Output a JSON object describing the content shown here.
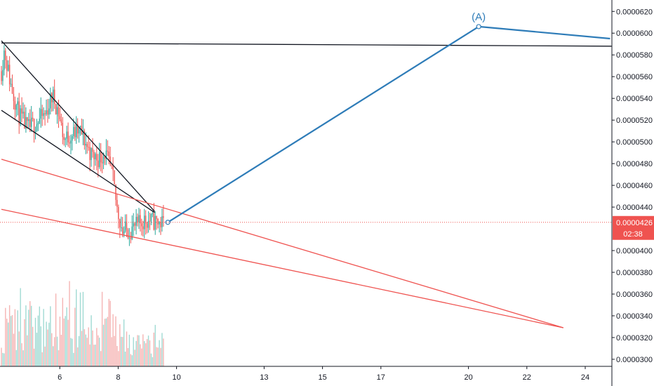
{
  "chart_data": {
    "type": "candlestick",
    "title": "",
    "xlabel": "",
    "ylabel": "",
    "ylim": [
      2.935e-05,
      6.305e-05
    ],
    "xlim": [
      4.0,
      25.0
    ],
    "y_ticks": [
      {
        "value": 3e-05,
        "label": "0.0000300"
      },
      {
        "value": 3.2e-05,
        "label": "0.0000320"
      },
      {
        "value": 3.4e-05,
        "label": "0.0000340"
      },
      {
        "value": 3.6e-05,
        "label": "0.0000360"
      },
      {
        "value": 3.8e-05,
        "label": "0.0000380"
      },
      {
        "value": 4e-05,
        "label": "0.0000400"
      },
      {
        "value": 4.4e-05,
        "label": "0.0000440"
      },
      {
        "value": 4.6e-05,
        "label": "0.0000460"
      },
      {
        "value": 4.8e-05,
        "label": "0.0000480"
      },
      {
        "value": 5e-05,
        "label": "0.0000500"
      },
      {
        "value": 5.2e-05,
        "label": "0.0000520"
      },
      {
        "value": 5.4e-05,
        "label": "0.0000540"
      },
      {
        "value": 5.6e-05,
        "label": "0.0000560"
      },
      {
        "value": 5.8e-05,
        "label": "0.0000580"
      },
      {
        "value": 6e-05,
        "label": "0.0000600"
      },
      {
        "value": 6.2e-05,
        "label": "0.0000620"
      }
    ],
    "x_ticks": [
      {
        "value": 6,
        "label": "6"
      },
      {
        "value": 8,
        "label": "8"
      },
      {
        "value": 10,
        "label": "10"
      },
      {
        "value": 13,
        "label": "13"
      },
      {
        "value": 15,
        "label": "15"
      },
      {
        "value": 17,
        "label": "17"
      },
      {
        "value": 20,
        "label": "20"
      },
      {
        "value": 22,
        "label": "22"
      },
      {
        "value": 24,
        "label": "24"
      }
    ],
    "price_anchors": [
      {
        "x": 4.0,
        "y": 5.65e-05
      },
      {
        "x": 4.1,
        "y": 5.85e-05
      },
      {
        "x": 4.3,
        "y": 5.55e-05
      },
      {
        "x": 4.6,
        "y": 5.25e-05
      },
      {
        "x": 4.9,
        "y": 5.12e-05
      },
      {
        "x": 5.2,
        "y": 5.18e-05
      },
      {
        "x": 5.5,
        "y": 5.25e-05
      },
      {
        "x": 5.75,
        "y": 5.43e-05
      },
      {
        "x": 5.95,
        "y": 5.28e-05
      },
      {
        "x": 6.15,
        "y": 5.02e-05
      },
      {
        "x": 6.4,
        "y": 5.07e-05
      },
      {
        "x": 6.7,
        "y": 5.1e-05
      },
      {
        "x": 6.9,
        "y": 4.98e-05
      },
      {
        "x": 7.1,
        "y": 4.87e-05
      },
      {
        "x": 7.35,
        "y": 4.85e-05
      },
      {
        "x": 7.55,
        "y": 4.9e-05
      },
      {
        "x": 7.8,
        "y": 4.7e-05
      },
      {
        "x": 7.95,
        "y": 4.4e-05
      },
      {
        "x": 8.15,
        "y": 4.18e-05
      },
      {
        "x": 8.4,
        "y": 4.19e-05
      },
      {
        "x": 8.6,
        "y": 4.22e-05
      },
      {
        "x": 8.9,
        "y": 4.28e-05
      },
      {
        "x": 9.2,
        "y": 4.27e-05
      },
      {
        "x": 9.55,
        "y": 4.25e-05
      }
    ],
    "volume_bars_count": 120,
    "current_price": {
      "value": 4.26e-05,
      "label": "0.0000426",
      "countdown": "02:38",
      "color": "#ef5350"
    },
    "drawings": [
      {
        "name": "horizontal-resistance",
        "color": "#131722",
        "points": [
          [
            4.0,
            5.91e-05
          ],
          [
            24.9,
            5.88e-05
          ]
        ]
      },
      {
        "name": "wedge-upper",
        "color": "#131722",
        "points": [
          [
            4.0,
            5.93e-05
          ],
          [
            9.25,
            4.36e-05
          ]
        ]
      },
      {
        "name": "wedge-lower",
        "color": "#131722",
        "points": [
          [
            4.0,
            5.29e-05
          ],
          [
            9.25,
            4.35e-05
          ]
        ]
      },
      {
        "name": "channel-upper",
        "color": "#ef5350",
        "points": [
          [
            4.0,
            4.84e-05
          ],
          [
            23.25,
            3.29e-05
          ]
        ]
      },
      {
        "name": "channel-lower",
        "color": "#ef5350",
        "points": [
          [
            4.0,
            4.38e-05
          ],
          [
            23.25,
            3.29e-05
          ]
        ]
      },
      {
        "name": "projection-path",
        "color": "#2e7cb8",
        "points": [
          [
            9.7,
            4.26e-05
          ],
          [
            20.35,
            6.06e-05
          ],
          [
            24.85,
            5.95e-05
          ]
        ]
      }
    ],
    "annotations": [
      {
        "text": "(A)",
        "x": 20.35,
        "y": 6.06e-05,
        "color": "#2e7cb8"
      }
    ],
    "colors": {
      "up": "#26a69a",
      "down": "#ef5350",
      "up_volume": "#8fd3cb",
      "down_volume": "#f3a7a6",
      "grid": "#f0f3fa",
      "axis": "#131722"
    }
  }
}
